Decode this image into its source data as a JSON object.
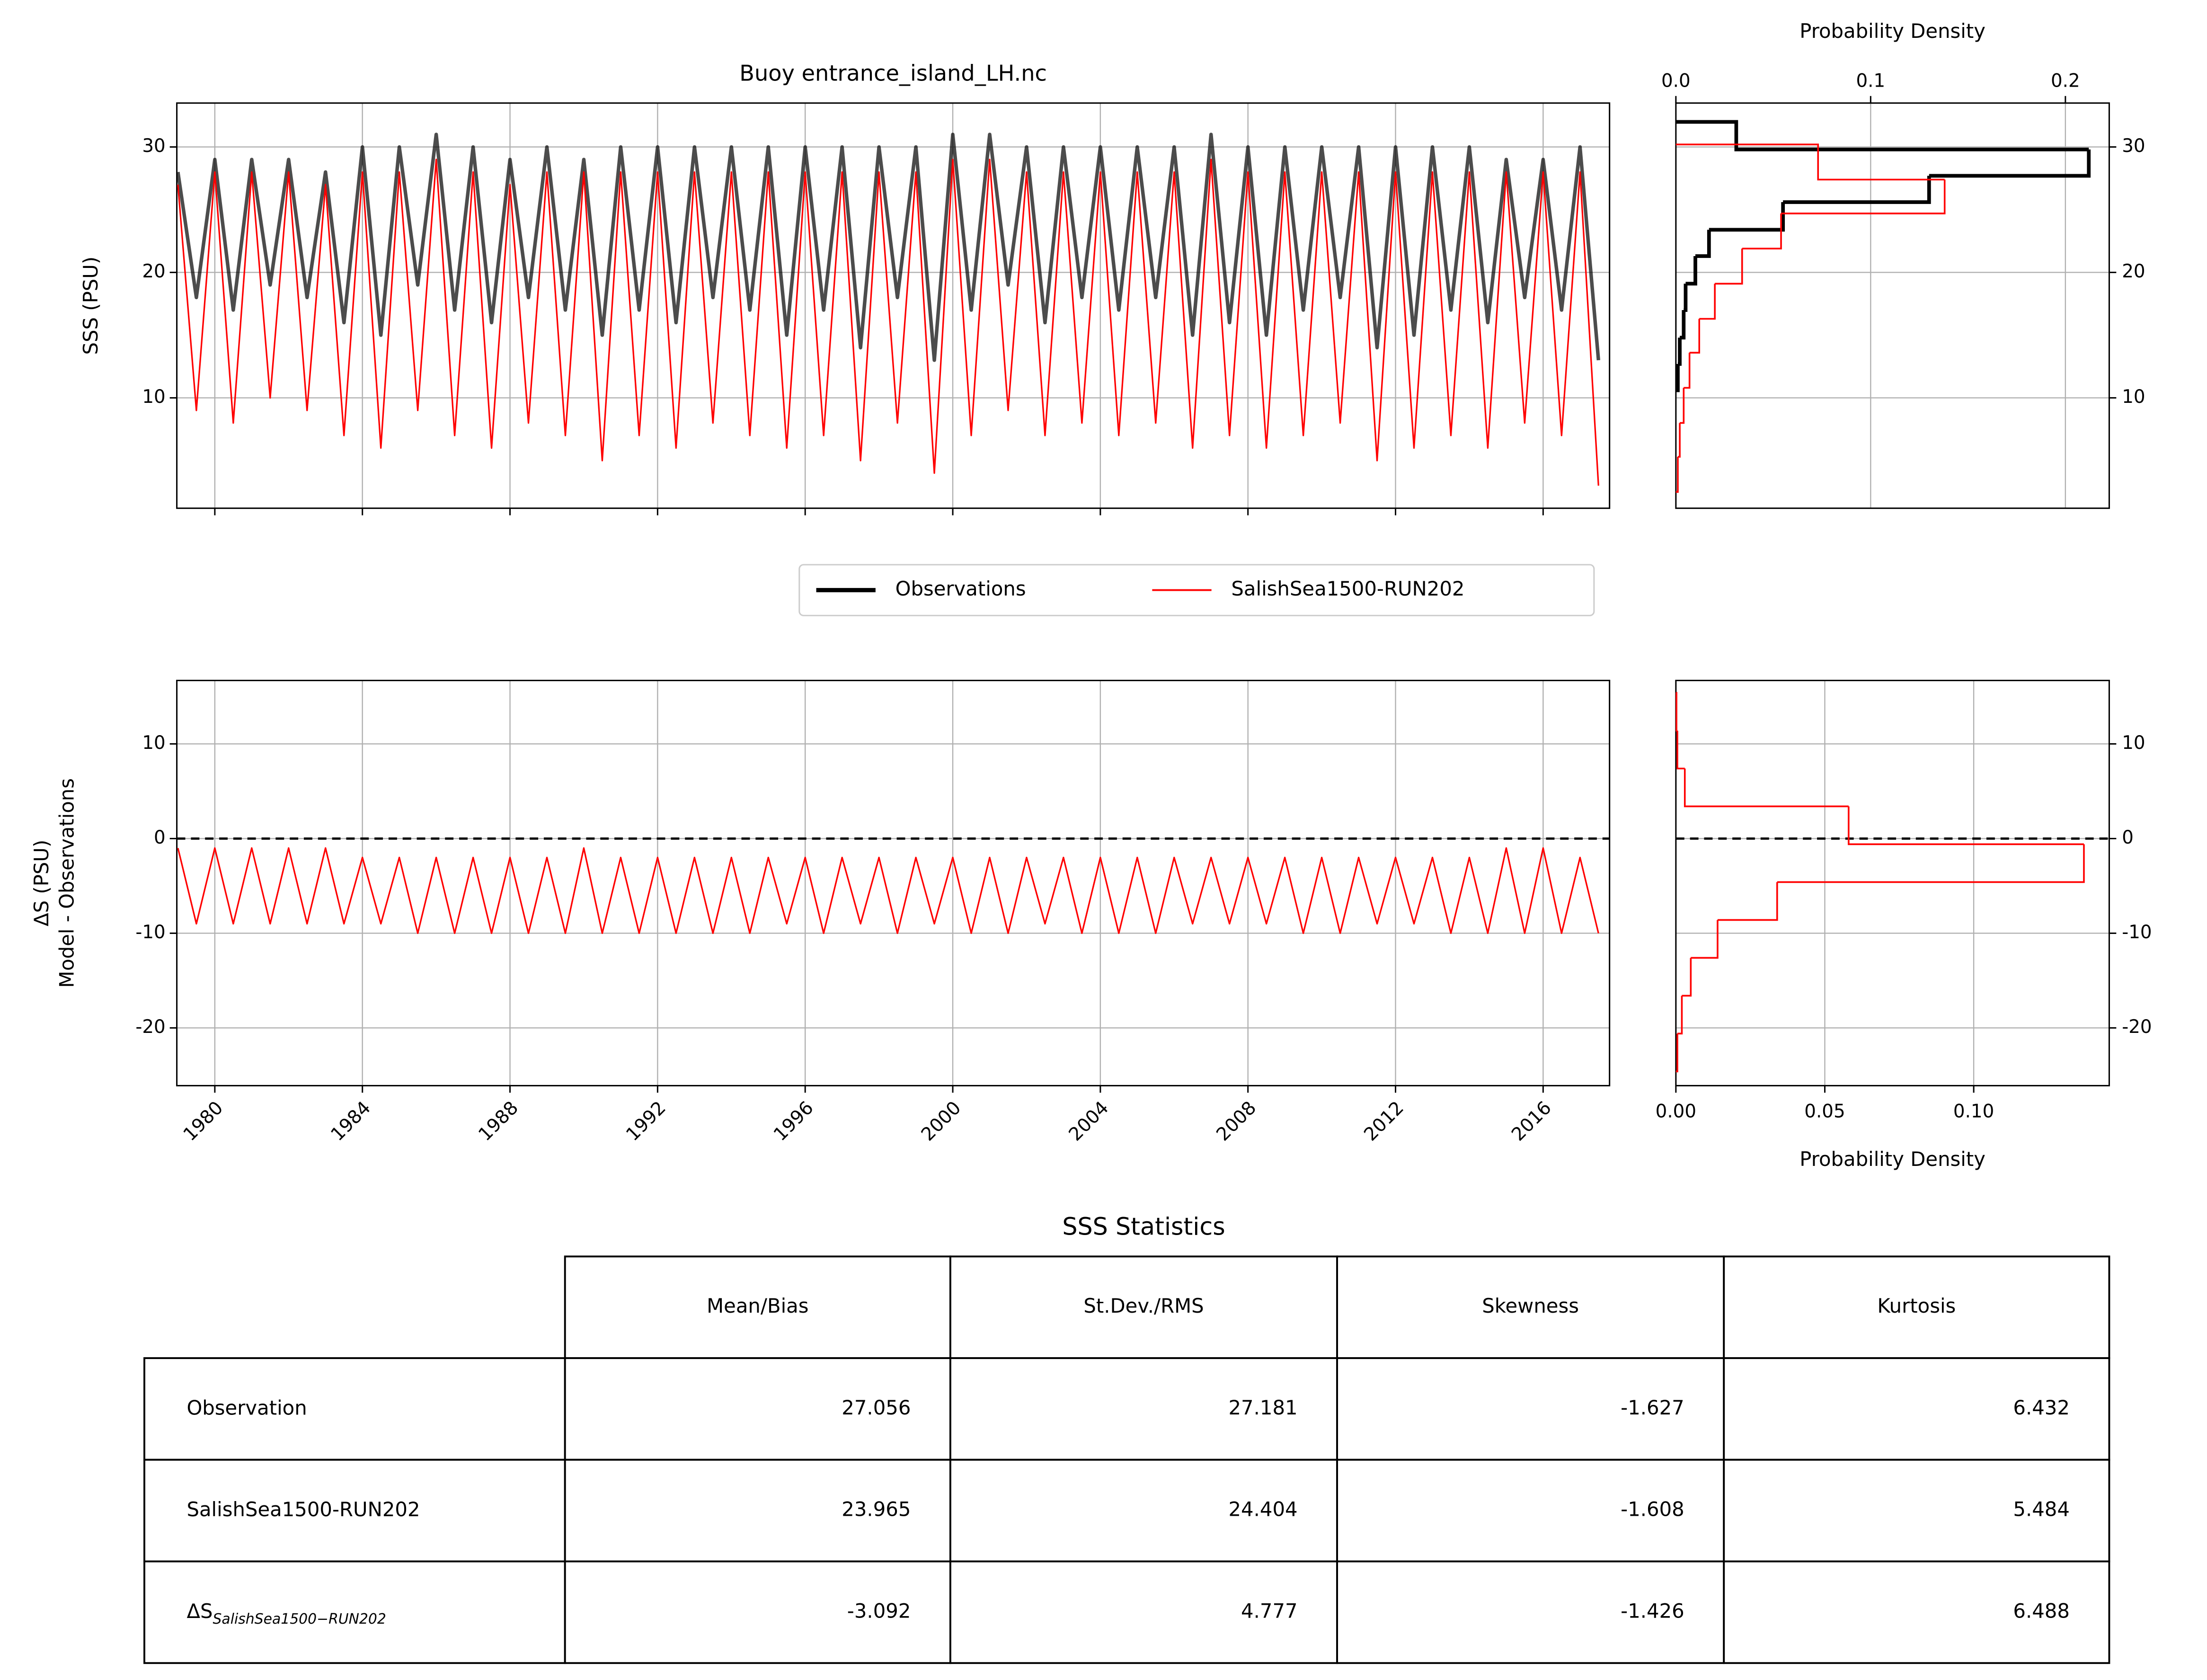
{
  "chart_data": [
    {
      "type": "line",
      "title": "Buoy entrance_island_LH.nc",
      "ylabel": [
        "SSS (PSU)"
      ],
      "x": [
        1979,
        1979.5,
        1980,
        1980.5,
        1981,
        1981.5,
        1982,
        1982.5,
        1983,
        1983.5,
        1984,
        1984.5,
        1985,
        1985.5,
        1986,
        1986.5,
        1987,
        1987.5,
        1988,
        1988.5,
        1989,
        1989.5,
        1990,
        1990.5,
        1991,
        1991.5,
        1992,
        1992.5,
        1993,
        1993.5,
        1994,
        1994.5,
        1995,
        1995.5,
        1996,
        1996.5,
        1997,
        1997.5,
        1998,
        1998.5,
        1999,
        1999.5,
        2000,
        2000.5,
        2001,
        2001.5,
        2002,
        2002.5,
        2003,
        2003.5,
        2004,
        2004.5,
        2005,
        2005.5,
        2006,
        2006.5,
        2007,
        2007.5,
        2008,
        2008.5,
        2009,
        2009.5,
        2010,
        2010.5,
        2011,
        2011.5,
        2012,
        2012.5,
        2013,
        2013.5,
        2014,
        2014.5,
        2015,
        2015.5,
        2016,
        2016.5,
        2017,
        2017.5
      ],
      "xlim": [
        1978.97,
        2017.8
      ],
      "xticks": [
        1980,
        1984,
        1988,
        1992,
        1996,
        2000,
        2004,
        2008,
        2012,
        2016
      ],
      "show_xticklabels": false,
      "ylim": [
        1.2,
        33.5
      ],
      "yticks": [
        10,
        20,
        30
      ],
      "grid": true,
      "legend": true,
      "series": [
        {
          "name": "Observations",
          "color": "#000000",
          "values": [
            28,
            18,
            29,
            17,
            29,
            19,
            29,
            18,
            28,
            16,
            30,
            15,
            30,
            19,
            31,
            17,
            30,
            16,
            29,
            18,
            30,
            17,
            29,
            15,
            30,
            17,
            30,
            16,
            30,
            18,
            30,
            17,
            30,
            15,
            30,
            17,
            30,
            14,
            30,
            18,
            30,
            13,
            31,
            17,
            31,
            19,
            30,
            16,
            30,
            18,
            30,
            17,
            30,
            18,
            30,
            15,
            31,
            16,
            30,
            15,
            30,
            17,
            30,
            18,
            30,
            14,
            30,
            15,
            30,
            17,
            30,
            16,
            29,
            18,
            29,
            17,
            30,
            13
          ]
        },
        {
          "name": "SalishSea1500-RUN202",
          "color": "#ff0000",
          "values": [
            27,
            9,
            28,
            8,
            28,
            10,
            28,
            9,
            27,
            7,
            28,
            6,
            28,
            9,
            29,
            7,
            28,
            6,
            27,
            8,
            28,
            7,
            28,
            5,
            28,
            7,
            28,
            6,
            28,
            8,
            28,
            7,
            28,
            6,
            28,
            7,
            28,
            5,
            28,
            8,
            28,
            4,
            29,
            7,
            29,
            9,
            28,
            7,
            28,
            8,
            28,
            7,
            28,
            8,
            28,
            6,
            29,
            7,
            28,
            6,
            28,
            7,
            28,
            8,
            28,
            5,
            28,
            6,
            28,
            7,
            28,
            6,
            28,
            8,
            28,
            7,
            28,
            3
          ]
        }
      ]
    },
    {
      "type": "line",
      "ylabel": [
        "ΔS (PSU)",
        "Model - Observations"
      ],
      "x": [
        1979,
        1979.5,
        1980,
        1980.5,
        1981,
        1981.5,
        1982,
        1982.5,
        1983,
        1983.5,
        1984,
        1984.5,
        1985,
        1985.5,
        1986,
        1986.5,
        1987,
        1987.5,
        1988,
        1988.5,
        1989,
        1989.5,
        1990,
        1990.5,
        1991,
        1991.5,
        1992,
        1992.5,
        1993,
        1993.5,
        1994,
        1994.5,
        1995,
        1995.5,
        1996,
        1996.5,
        1997,
        1997.5,
        1998,
        1998.5,
        1999,
        1999.5,
        2000,
        2000.5,
        2001,
        2001.5,
        2002,
        2002.5,
        2003,
        2003.5,
        2004,
        2004.5,
        2005,
        2005.5,
        2006,
        2006.5,
        2007,
        2007.5,
        2008,
        2008.5,
        2009,
        2009.5,
        2010,
        2010.5,
        2011,
        2011.5,
        2012,
        2012.5,
        2013,
        2013.5,
        2014,
        2014.5,
        2015,
        2015.5,
        2016,
        2016.5,
        2017,
        2017.5
      ],
      "xlim": [
        1978.97,
        2017.8
      ],
      "xticks": [
        1980,
        1984,
        1988,
        1992,
        1996,
        2000,
        2004,
        2008,
        2012,
        2016
      ],
      "xtick_rotation": 45,
      "ylim": [
        -26.1,
        16.7
      ],
      "yticks": [
        -20,
        -10,
        0,
        10
      ],
      "grid": true,
      "zero_line": true,
      "series": [
        {
          "color": "#ff0000",
          "values": [
            -1,
            -9,
            -1,
            -9,
            -1,
            -9,
            -1,
            -9,
            -1,
            -9,
            -2,
            -9,
            -2,
            -10,
            -2,
            -10,
            -2,
            -10,
            -2,
            -10,
            -2,
            -10,
            -1,
            -10,
            -2,
            -10,
            -2,
            -10,
            -2,
            -10,
            -2,
            -10,
            -2,
            -9,
            -2,
            -10,
            -2,
            -9,
            -2,
            -10,
            -2,
            -9,
            -2,
            -10,
            -2,
            -10,
            -2,
            -9,
            -2,
            -10,
            -2,
            -10,
            -2,
            -10,
            -2,
            -9,
            -2,
            -9,
            -2,
            -9,
            -2,
            -10,
            -2,
            -10,
            -2,
            -9,
            -2,
            -9,
            -2,
            -10,
            -2,
            -10,
            -1,
            -10,
            -1,
            -10,
            -2,
            -10
          ]
        }
      ]
    },
    {
      "type": "histogram",
      "orientation": "horizontal",
      "xlabel": "Probability Density",
      "xaxis_side": "top",
      "yaxis_side": "right",
      "xlim": [
        0,
        0.2225
      ],
      "xticks": [
        {
          "value": 0,
          "label": "0.0"
        },
        0.1,
        0.2
      ],
      "ylim": [
        1.2,
        33.5
      ],
      "yticks": [
        10,
        20,
        30
      ],
      "grid": true,
      "series": [
        {
          "color": "#000000",
          "bins": [
            10.6,
            12.7,
            14.8,
            17.0,
            19.1,
            21.3,
            23.4,
            25.6,
            27.7,
            29.8,
            32.0
          ],
          "values": [
            0.001,
            0.002,
            0.004,
            0.005,
            0.01,
            0.017,
            0.055,
            0.13,
            0.212,
            0.031
          ]
        },
        {
          "color": "#ff0000",
          "bins": [
            2.5,
            5.3,
            8.0,
            10.8,
            13.6,
            16.3,
            19.1,
            21.9,
            24.7,
            27.4,
            30.2
          ],
          "values": [
            0.001,
            0.002,
            0.004,
            0.007,
            0.012,
            0.02,
            0.034,
            0.054,
            0.138,
            0.073
          ]
        }
      ]
    },
    {
      "type": "histogram",
      "orientation": "horizontal",
      "xlabel": "Probability Density",
      "yaxis_side": "right",
      "xlim": [
        0,
        0.1455
      ],
      "xticks": [
        {
          "value": 0,
          "label": "0.00"
        },
        0.05,
        {
          "value": 0.1,
          "label": "0.10"
        }
      ],
      "ylim": [
        -26.1,
        16.7
      ],
      "yticks": [
        -20,
        -10,
        0,
        10
      ],
      "grid": true,
      "zero_line": true,
      "series": [
        {
          "color": "#ff0000",
          "bins": [
            -24.6,
            -20.6,
            -16.6,
            -12.6,
            -8.6,
            -4.6,
            -0.6,
            3.4,
            7.4,
            11.4,
            15.4
          ],
          "values": [
            0.0005,
            0.002,
            0.005,
            0.014,
            0.034,
            0.137,
            0.058,
            0.003,
            0.0005,
            0.0002
          ]
        }
      ]
    }
  ],
  "table": {
    "title": "SSS Statistics",
    "columns": [
      "Mean/Bias",
      "St.Dev./RMS",
      "Skewness",
      "Kurtosis"
    ],
    "rows": [
      {
        "label": "Observation",
        "values": [
          27.056,
          27.181,
          -1.627,
          6.432
        ]
      },
      {
        "label": "SalishSea1500-RUN202",
        "values": [
          23.965,
          24.404,
          -1.608,
          5.484
        ]
      },
      {
        "label": "ΔS",
        "label_subscript": "SalishSea1500−RUN202",
        "values": [
          -3.092,
          4.777,
          -1.426,
          6.488
        ]
      }
    ]
  }
}
